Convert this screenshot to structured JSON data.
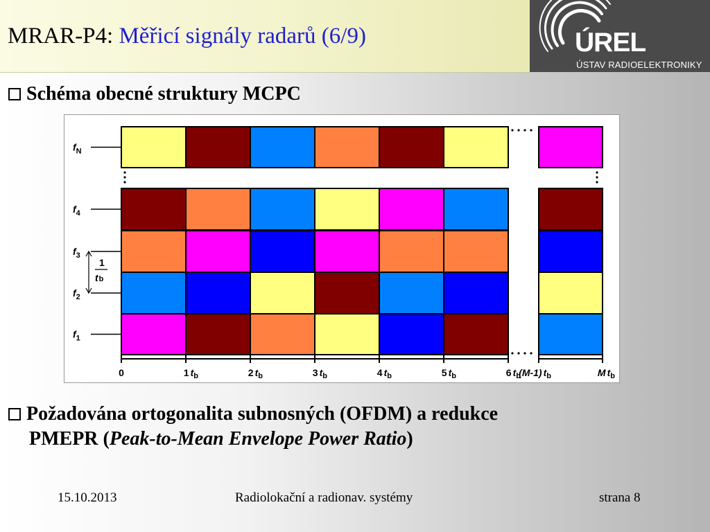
{
  "header": {
    "title_prefix": "MRAR-P4:",
    "title_main": "Měřicí signály radarů (6/9)"
  },
  "logo": {
    "word": "ÚREL",
    "subtitle": "ÚSTAV RADIOELEKTRONIKY"
  },
  "bullet1": {
    "text": "Schéma obecné struktury MCPC"
  },
  "bullet2": {
    "line1": "Požadována ortogonalita subnosných (OFDM) a redukce",
    "line2_start": "PMEPR (",
    "line2_italic": "Peak-to-Mean Envelope Power Ratio",
    "line2_end": ")"
  },
  "diagram": {
    "colors": {
      "Y": "#ffff80",
      "M": "#800000",
      "L": "#0080ff",
      "O": "#ff8040",
      "P": "#ff00ff",
      "B": "#0000ff"
    },
    "rows": [
      {
        "label": "f",
        "sub": "N",
        "cells": [
          "Y",
          "M",
          "L",
          "O",
          "M",
          "Y"
        ],
        "last": "P"
      },
      {
        "label": "f",
        "sub": "4",
        "cells": [
          "M",
          "O",
          "L",
          "Y",
          "P",
          "L"
        ],
        "last": "M"
      },
      {
        "label": "f",
        "sub": "3",
        "cells": [
          "O",
          "P",
          "B",
          "P",
          "O",
          "O"
        ],
        "last": "B"
      },
      {
        "label": "f",
        "sub": "2",
        "cells": [
          "L",
          "B",
          "Y",
          "M",
          "L",
          "B"
        ],
        "last": "Y"
      },
      {
        "label": "f",
        "sub": "1",
        "cells": [
          "P",
          "M",
          "O",
          "Y",
          "B",
          "M"
        ],
        "last": "L"
      }
    ],
    "spacing_label": {
      "num": "1",
      "den_t": "t",
      "den_sub": "b"
    },
    "ticks": [
      {
        "pre": "0",
        "t": "",
        "sub": ""
      },
      {
        "pre": "1",
        "t": "t",
        "sub": "b"
      },
      {
        "pre": "2",
        "t": "t",
        "sub": "b"
      },
      {
        "pre": "3",
        "t": "t",
        "sub": "b"
      },
      {
        "pre": "4",
        "t": "t",
        "sub": "b"
      },
      {
        "pre": "5",
        "t": "t",
        "sub": "b"
      },
      {
        "pre": "6",
        "t": "t",
        "sub": "b"
      },
      {
        "pre": "(M-1)",
        "t": "t",
        "sub": "b"
      },
      {
        "pre": "M",
        "t": "t",
        "sub": "b"
      }
    ]
  },
  "footer": {
    "date": "15.10.2013",
    "course": "Radiolokační a radionav. systémy",
    "page": "strana 8"
  }
}
